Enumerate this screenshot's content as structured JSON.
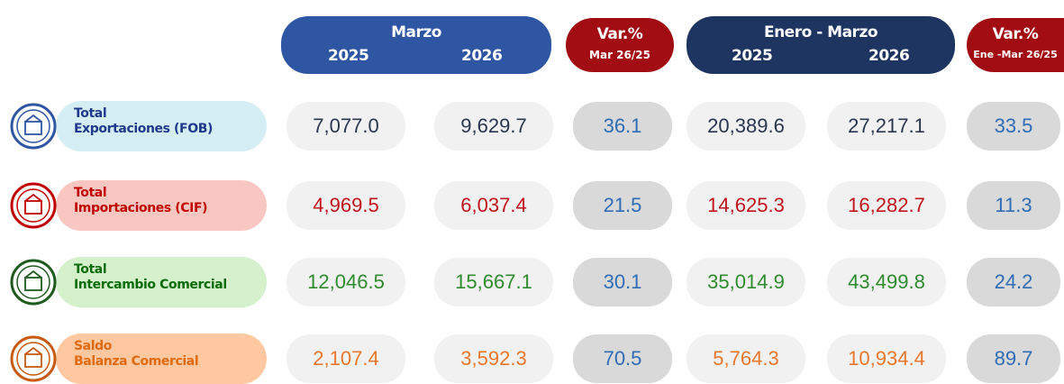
{
  "header": {
    "groups": [
      {
        "title": "Marzo",
        "years": [
          "2025",
          "2026"
        ]
      },
      {
        "title": "Var.%",
        "subtitle": "Mar 26/25"
      },
      {
        "title": "Enero - Marzo",
        "years": [
          "2025",
          "2026"
        ]
      },
      {
        "title": "Var.%",
        "subtitle": "Ene -Mar 26/25"
      }
    ]
  },
  "rows": [
    {
      "label": [
        "Total",
        "Exportaciones (FOB)"
      ],
      "values": [
        "7,077.0",
        "9,629.7",
        "36.1",
        "20,389.6",
        "27,217.1",
        "33.5"
      ]
    },
    {
      "label": [
        "Total",
        "Importaciones (CIF)"
      ],
      "values": [
        "4,969.5",
        "6,037.4",
        "21.5",
        "14,625.3",
        "16,282.7",
        "11.3"
      ]
    },
    {
      "label": [
        "Total",
        "Intercambio Comercial"
      ],
      "values": [
        "12,046.5",
        "15,667.1",
        "30.1",
        "35,014.9",
        "43,499.8",
        "24.2"
      ]
    },
    {
      "label": [
        "Saldo",
        "Balanza Comercial"
      ],
      "values": [
        "2,107.4",
        "3,592.3",
        "70.5",
        "5,764.3",
        "10,934.4",
        "89.7"
      ]
    }
  ]
}
